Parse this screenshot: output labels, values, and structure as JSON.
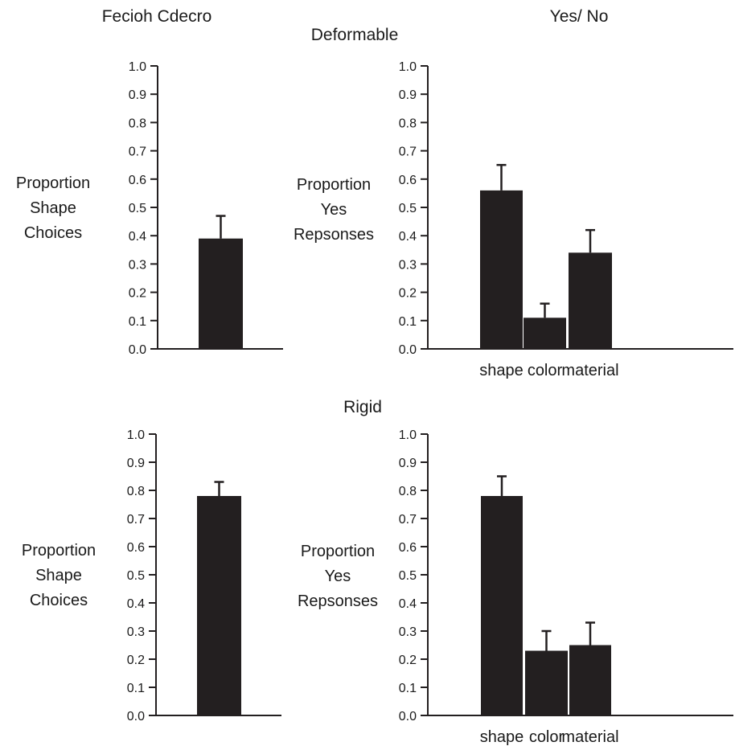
{
  "column_headers": {
    "left": "Fecioh Cdecro",
    "right": "Yes/ No"
  },
  "row_headers": {
    "top": "Deformable",
    "bottom": "Rigid"
  },
  "colors": {
    "bar": "#231f20",
    "axis": "#231f20",
    "text": "#1a1a1a"
  },
  "chart_data": [
    {
      "type": "bar",
      "panel": "top-left",
      "ylabel": [
        "Proportion",
        "Shape",
        "Choices"
      ],
      "ylim": [
        0.0,
        1.0
      ],
      "yticks": [
        "0.0",
        "0.1",
        "0.2",
        "0.3",
        "0.4",
        "0.5",
        "0.6",
        "0.7",
        "0.8",
        "0.9",
        "1.0"
      ],
      "categories": [
        ""
      ],
      "values": [
        0.39
      ],
      "error": [
        0.08
      ],
      "grid": false
    },
    {
      "type": "bar",
      "panel": "top-right",
      "ylabel": [
        "Proportion",
        "Yes",
        "Repsonses"
      ],
      "ylim": [
        0.0,
        1.0
      ],
      "yticks": [
        "0.0",
        "0.1",
        "0.2",
        "0.3",
        "0.4",
        "0.5",
        "0.6",
        "0.7",
        "0.8",
        "0.9",
        "1.0"
      ],
      "categories": [
        "shape",
        "color",
        "material"
      ],
      "values": [
        0.56,
        0.11,
        0.34
      ],
      "error": [
        0.09,
        0.05,
        0.08
      ],
      "grid": false
    },
    {
      "type": "bar",
      "panel": "bottom-left",
      "ylabel": [
        "Proportion",
        "Shape",
        "Choices"
      ],
      "ylim": [
        0.0,
        1.0
      ],
      "yticks": [
        "0.0",
        "0.1",
        "0.2",
        "0.3",
        "0.4",
        "0.5",
        "0.6",
        "0.7",
        "0.8",
        "0.9",
        "1.0"
      ],
      "categories": [
        ""
      ],
      "values": [
        0.78
      ],
      "error": [
        0.05
      ],
      "grid": false
    },
    {
      "type": "bar",
      "panel": "bottom-right",
      "ylabel": [
        "Proportion",
        "Yes",
        "Repsonses"
      ],
      "ylim": [
        0.0,
        1.0
      ],
      "yticks": [
        "0.0",
        "0.1",
        "0.2",
        "0.3",
        "0.4",
        "0.5",
        "0.6",
        "0.7",
        "0.8",
        "0.9",
        "1.0"
      ],
      "categories": [
        "shape",
        "color",
        "material"
      ],
      "values": [
        0.78,
        0.23,
        0.25
      ],
      "error": [
        0.07,
        0.07,
        0.08
      ],
      "grid": false
    }
  ]
}
